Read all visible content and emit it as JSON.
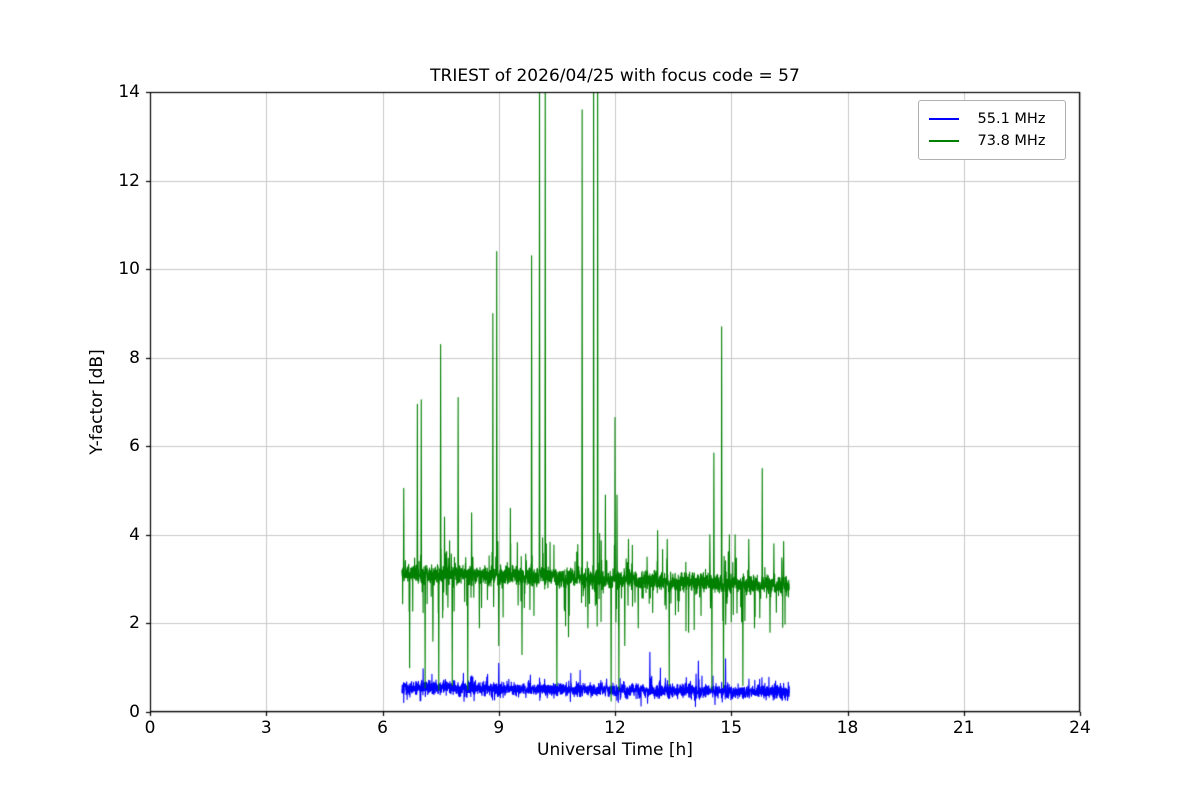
{
  "chart_data": {
    "type": "line",
    "title": "TRIEST of 2026/04/25 with focus code = 57",
    "xlabel": "Universal Time [h]",
    "ylabel": "Y-factor [dB]",
    "xlim": [
      0,
      24
    ],
    "ylim": [
      0,
      14
    ],
    "xticks": [
      0,
      3,
      6,
      9,
      12,
      15,
      18,
      21,
      24
    ],
    "yticks": [
      0,
      2,
      4,
      6,
      8,
      10,
      12,
      14
    ],
    "grid": true,
    "grid_color": "#c8c8c8",
    "frame_color": "#000000",
    "legend": {
      "position": "upper-right",
      "entries": [
        {
          "label": "55.1 MHz",
          "color": "#0000ff"
        },
        {
          "label": "73.8 MHz",
          "color": "#008000"
        }
      ]
    },
    "series": [
      {
        "name": "55.1 MHz",
        "color": "#0000ff",
        "x_range": [
          6.5,
          16.5
        ],
        "baseline": [
          0.55,
          0.45
        ],
        "noise_amplitude": 0.22,
        "extra_up": 0.35,
        "extra_down": 0.25,
        "min": 0.05,
        "spikes": [
          {
            "x": 9.0,
            "y": 1.1
          },
          {
            "x": 12.9,
            "y": 1.35
          },
          {
            "x": 14.15,
            "y": 1.15
          },
          {
            "x": 14.85,
            "y": 1.2
          }
        ],
        "dips": []
      },
      {
        "name": "73.8 MHz",
        "color": "#008000",
        "x_range": [
          6.5,
          16.5
        ],
        "baseline": [
          3.15,
          2.85
        ],
        "noise_amplitude": 0.32,
        "extra_up": 0.8,
        "extra_down": 1.0,
        "min": 1.7,
        "spikes": [
          {
            "x": 6.55,
            "y": 5.05
          },
          {
            "x": 6.9,
            "y": 6.95
          },
          {
            "x": 7.0,
            "y": 7.05
          },
          {
            "x": 7.5,
            "y": 8.3
          },
          {
            "x": 7.6,
            "y": 4.4
          },
          {
            "x": 7.95,
            "y": 7.1
          },
          {
            "x": 8.3,
            "y": 4.5
          },
          {
            "x": 8.85,
            "y": 9.0
          },
          {
            "x": 8.95,
            "y": 10.4
          },
          {
            "x": 9.3,
            "y": 4.6
          },
          {
            "x": 9.85,
            "y": 10.3
          },
          {
            "x": 10.05,
            "y": 14.8
          },
          {
            "x": 10.2,
            "y": 14.8
          },
          {
            "x": 11.15,
            "y": 13.6
          },
          {
            "x": 11.45,
            "y": 14.8
          },
          {
            "x": 11.55,
            "y": 14.8
          },
          {
            "x": 11.75,
            "y": 4.9
          },
          {
            "x": 12.0,
            "y": 6.65
          },
          {
            "x": 12.05,
            "y": 4.9
          },
          {
            "x": 12.35,
            "y": 3.9
          },
          {
            "x": 13.1,
            "y": 4.1
          },
          {
            "x": 13.35,
            "y": 3.9
          },
          {
            "x": 14.45,
            "y": 4.0
          },
          {
            "x": 14.55,
            "y": 5.85
          },
          {
            "x": 14.75,
            "y": 8.7
          },
          {
            "x": 14.95,
            "y": 4.0
          },
          {
            "x": 15.1,
            "y": 4.0
          },
          {
            "x": 15.45,
            "y": 3.9
          },
          {
            "x": 15.8,
            "y": 5.5
          },
          {
            "x": 16.1,
            "y": 3.8
          },
          {
            "x": 16.35,
            "y": 3.85
          }
        ],
        "dips": [
          {
            "x": 6.7,
            "y": 1.0
          },
          {
            "x": 7.1,
            "y": 0.55
          },
          {
            "x": 7.3,
            "y": 1.6
          },
          {
            "x": 7.45,
            "y": 0.5
          },
          {
            "x": 7.8,
            "y": 0.6
          },
          {
            "x": 8.2,
            "y": 0.5
          },
          {
            "x": 8.5,
            "y": 1.9
          },
          {
            "x": 9.0,
            "y": 1.5
          },
          {
            "x": 9.6,
            "y": 1.3
          },
          {
            "x": 10.5,
            "y": 0.6
          },
          {
            "x": 10.8,
            "y": 1.7
          },
          {
            "x": 11.3,
            "y": 1.9
          },
          {
            "x": 11.9,
            "y": 0.25
          },
          {
            "x": 12.1,
            "y": 0.5
          },
          {
            "x": 12.25,
            "y": 1.5
          },
          {
            "x": 12.6,
            "y": 1.9
          },
          {
            "x": 13.4,
            "y": 0.6
          },
          {
            "x": 13.9,
            "y": 1.8
          },
          {
            "x": 14.5,
            "y": 0.5
          },
          {
            "x": 14.8,
            "y": 0.55
          },
          {
            "x": 15.3,
            "y": 0.6
          },
          {
            "x": 15.6,
            "y": 1.9
          },
          {
            "x": 16.0,
            "y": 1.8
          }
        ]
      }
    ]
  }
}
